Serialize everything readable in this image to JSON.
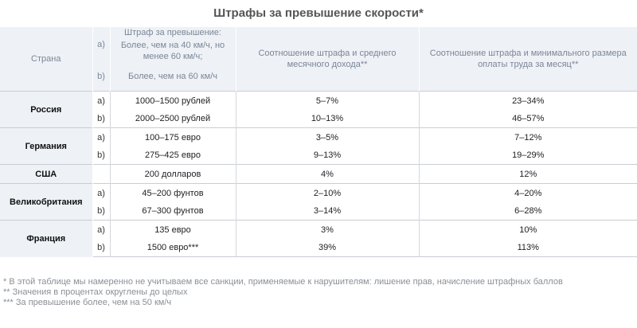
{
  "title": "Штрафы за превышение скорости*",
  "header": {
    "country": "Страна",
    "fine_top": "Штраф за превышение:",
    "a_label": "a)",
    "b_label": "b)",
    "fine_a": "Более, чем на 40 км/ч, но менее 60 км/ч;",
    "fine_b": "Более, чем на 60 км/ч",
    "income": "Соотношение штрафа и среднего месячного дохода**",
    "minwage": "Соотношение штрафа и минимального размера оплаты труда за месяц**"
  },
  "rows": [
    {
      "country": "Россия",
      "a": {
        "label": "a)",
        "fine": "1000–1500 рублей",
        "income": "5–7%",
        "minwage": "23–34%"
      },
      "b": {
        "label": "b)",
        "fine": "2000–2500 рублей",
        "income": "10–13%",
        "minwage": "46–57%"
      }
    },
    {
      "country": "Германия",
      "a": {
        "label": "a)",
        "fine": "100–175 евро",
        "income": "3–5%",
        "minwage": "7–12%"
      },
      "b": {
        "label": "b)",
        "fine": "275–425 евро",
        "income": "9–13%",
        "minwage": "19–29%"
      }
    },
    {
      "country": "США",
      "single": {
        "fine": "200 долларов",
        "income": "4%",
        "minwage": "12%"
      }
    },
    {
      "country": "Великобритания",
      "a": {
        "label": "a)",
        "fine": "45–200 фунтов",
        "income": "2–10%",
        "minwage": "4–20%"
      },
      "b": {
        "label": "b)",
        "fine": "67–300 фунтов",
        "income": "3–14%",
        "minwage": "6–28%"
      }
    },
    {
      "country": "Франция",
      "a": {
        "label": "a)",
        "fine": "135 евро",
        "income": "3%",
        "minwage": "10%"
      },
      "b": {
        "label": "b)",
        "fine": "1500 евро***",
        "income": "39%",
        "minwage": "113%"
      }
    }
  ],
  "notes": [
    "* В этой таблице мы намеренно не учитываем все санкции, применяемые к нарушителям: лишение прав, начисление штрафных баллов",
    "** Значения в процентах округлены до целых",
    "*** За превышение более, чем на 50 км/ч"
  ]
}
